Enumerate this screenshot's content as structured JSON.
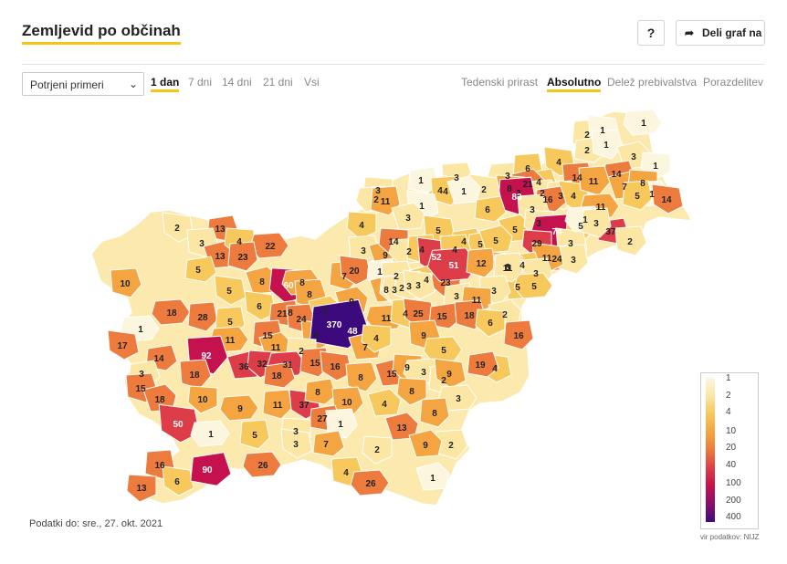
{
  "header": {
    "title": "Zemljevid po občinah",
    "help_label": "?",
    "share_label": "Deli graf na"
  },
  "filters": {
    "metric_select": "Potrjeni primeri",
    "periods": [
      "1 dan",
      "7 dni",
      "14 dni",
      "21 dni",
      "Vsi"
    ],
    "active_period": "1 dan",
    "views": [
      "Tedenski prirast",
      "Absolutno",
      "Delež prebivalstva",
      "Porazdelitev"
    ],
    "active_view": "Absolutno"
  },
  "legend": {
    "labels": [
      "1",
      "2",
      "4",
      "10",
      "20",
      "40",
      "100",
      "200",
      "400"
    ],
    "colors": [
      "#fdf6df",
      "#fbe6a4",
      "#f7c85c",
      "#f4a542",
      "#ee7b3e",
      "#dd3d49",
      "#c5114e",
      "#8a0d6b",
      "#3d0a7e"
    ]
  },
  "footer": {
    "date": "Podatki do: sre., 27. okt. 2021",
    "source": "vir podatkov: NIJZ"
  },
  "map_values": [
    {
      "v": 1
    },
    {
      "v": 2
    },
    {
      "v": 1
    },
    {
      "v": 2
    },
    {
      "v": 1
    },
    {
      "v": 3
    },
    {
      "v": 1
    },
    {
      "v": 3
    },
    {
      "v": 6
    },
    {
      "v": 4
    },
    {
      "v": 4
    },
    {
      "v": 14
    },
    {
      "v": 21
    },
    {
      "v": 3
    },
    {
      "v": 2
    },
    {
      "v": 3
    },
    {
      "v": 4
    },
    {
      "v": 14
    },
    {
      "v": 11
    },
    {
      "v": 7
    },
    {
      "v": 8
    },
    {
      "v": 1
    },
    {
      "v": 5
    },
    {
      "v": 14
    },
    {
      "v": 16
    },
    {
      "v": 3
    },
    {
      "v": 4
    },
    {
      "v": 8
    },
    {
      "v": 11
    },
    {
      "v": 83
    },
    {
      "v": 2
    },
    {
      "v": 1
    },
    {
      "v": 4
    },
    {
      "v": 1
    },
    {
      "v": 3
    },
    {
      "v": 2
    },
    {
      "v": 11
    },
    {
      "v": 1
    },
    {
      "v": 6
    },
    {
      "v": 3
    },
    {
      "v": 5
    },
    {
      "v": 3
    },
    {
      "v": 74
    },
    {
      "v": 5
    },
    {
      "v": 3
    },
    {
      "v": 37
    },
    {
      "v": 2
    },
    {
      "v": 3
    },
    {
      "v": 4
    },
    {
      "v": 1
    },
    {
      "v": 3
    },
    {
      "v": 2
    },
    {
      "v": 13
    },
    {
      "v": 3
    },
    {
      "v": 13
    },
    {
      "v": 4
    },
    {
      "v": 22
    },
    {
      "v": 23
    },
    {
      "v": 5
    },
    {
      "v": 4
    },
    {
      "v": 3
    },
    {
      "v": 9
    },
    {
      "v": 14
    },
    {
      "v": 2
    },
    {
      "v": 4
    },
    {
      "v": 52
    },
    {
      "v": 5
    },
    {
      "v": 4
    },
    {
      "v": 5
    },
    {
      "v": 29
    },
    {
      "v": 24
    },
    {
      "v": 3
    },
    {
      "v": 11
    },
    {
      "v": 5
    },
    {
      "v": 10
    },
    {
      "v": 8
    },
    {
      "v": 60
    },
    {
      "v": 8
    },
    {
      "v": 7
    },
    {
      "v": 20
    },
    {
      "v": 1
    },
    {
      "v": 2
    },
    {
      "v": 4
    },
    {
      "v": 23
    },
    {
      "v": 51
    },
    {
      "v": 12
    },
    {
      "v": 8
    },
    {
      "v": 4
    },
    {
      "v": 3
    },
    {
      "v": 5
    },
    {
      "v": 11
    },
    {
      "v": 5
    },
    {
      "v": 3
    },
    {
      "v": 5
    },
    {
      "v": 8
    },
    {
      "v": 8
    },
    {
      "v": 8
    },
    {
      "v": 3
    },
    {
      "v": 2
    },
    {
      "v": 3
    },
    {
      "v": 3
    },
    {
      "v": 3
    },
    {
      "v": 3
    },
    {
      "v": 9
    },
    {
      "v": 11
    },
    {
      "v": 18
    },
    {
      "v": 28
    },
    {
      "v": 6
    },
    {
      "v": 21
    },
    {
      "v": 24
    },
    {
      "v": 5
    },
    {
      "v": 48
    },
    {
      "v": 11
    },
    {
      "v": 4
    },
    {
      "v": 25
    },
    {
      "v": 15
    },
    {
      "v": 18
    },
    {
      "v": 2
    },
    {
      "v": 6
    },
    {
      "v": 1
    },
    {
      "v": 5
    },
    {
      "v": 8
    },
    {
      "v": 370
    },
    {
      "v": 9
    },
    {
      "v": 7
    },
    {
      "v": 4
    },
    {
      "v": 11
    },
    {
      "v": 15
    },
    {
      "v": 17
    },
    {
      "v": 14
    },
    {
      "v": 92
    },
    {
      "v": 11
    },
    {
      "v": 2
    },
    {
      "v": 5
    },
    {
      "v": 16
    },
    {
      "v": 4
    },
    {
      "v": 3
    },
    {
      "v": 18
    },
    {
      "v": 36
    },
    {
      "v": 32
    },
    {
      "v": 31
    },
    {
      "v": 15
    },
    {
      "v": 16
    },
    {
      "v": 18
    },
    {
      "v": 8
    },
    {
      "v": 15
    },
    {
      "v": 9
    },
    {
      "v": 3
    },
    {
      "v": 2
    },
    {
      "v": 9
    },
    {
      "v": 19
    },
    {
      "v": 15
    },
    {
      "v": 18
    },
    {
      "v": 10
    },
    {
      "v": 9
    },
    {
      "v": 11
    },
    {
      "v": 37
    },
    {
      "v": 8
    },
    {
      "v": 10
    },
    {
      "v": 4
    },
    {
      "v": 8
    },
    {
      "v": 3
    },
    {
      "v": 8
    },
    {
      "v": 50
    },
    {
      "v": 27
    },
    {
      "v": 1
    },
    {
      "v": 13
    },
    {
      "v": 3
    },
    {
      "v": 1
    },
    {
      "v": 5
    },
    {
      "v": 3
    },
    {
      "v": 7
    },
    {
      "v": 2
    },
    {
      "v": 9
    },
    {
      "v": 2
    },
    {
      "v": 26
    },
    {
      "v": 16
    },
    {
      "v": 6
    },
    {
      "v": 90
    },
    {
      "v": 4
    },
    {
      "v": 1
    },
    {
      "v": 13
    },
    {
      "v": 26
    },
    {
      "v": 1
    }
  ]
}
